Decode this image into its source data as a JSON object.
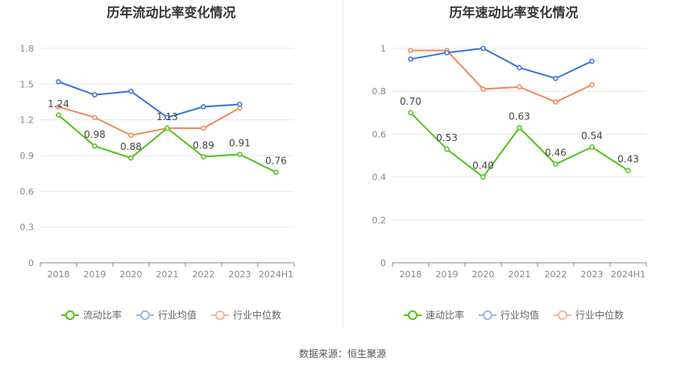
{
  "source_text": "数据来源：恒生聚源",
  "chart_data": [
    {
      "type": "line",
      "title": "历年流动比率变化情况",
      "categories": [
        "2018",
        "2019",
        "2020",
        "2021",
        "2022",
        "2023",
        "2024H1"
      ],
      "ylim": [
        0,
        1.8
      ],
      "yticks": [
        0,
        0.3,
        0.6,
        0.9,
        1.2,
        1.5,
        1.8
      ],
      "ytick_labels": [
        "0",
        "0.3",
        "0.6",
        "0.9",
        "1.2",
        "1.5",
        "1.8"
      ],
      "grid": true,
      "legend_position": "bottom",
      "series": [
        {
          "name": "流动比率",
          "color": "#52c41a",
          "values": [
            1.24,
            0.98,
            0.88,
            1.13,
            0.89,
            0.91,
            0.76
          ],
          "labels": [
            "1.24",
            "0.98",
            "0.88",
            "1.13",
            "0.89",
            "0.91",
            "0.76"
          ]
        },
        {
          "name": "行业均值",
          "color": "#3a75d8",
          "values": [
            1.52,
            1.41,
            1.44,
            1.22,
            1.31,
            1.33,
            null
          ]
        },
        {
          "name": "行业中位数",
          "color": "#f08a5d",
          "values": [
            1.31,
            1.22,
            1.07,
            1.13,
            1.13,
            1.3,
            null
          ]
        }
      ]
    },
    {
      "type": "line",
      "title": "历年速动比率变化情况",
      "categories": [
        "2018",
        "2019",
        "2020",
        "2021",
        "2022",
        "2023",
        "2024H1"
      ],
      "ylim": [
        0,
        1
      ],
      "yticks": [
        0,
        0.2,
        0.4,
        0.6,
        0.8,
        1
      ],
      "ytick_labels": [
        "0",
        "0.2",
        "0.4",
        "0.6",
        "0.8",
        "1"
      ],
      "grid": true,
      "legend_position": "bottom",
      "series": [
        {
          "name": "速动比率",
          "color": "#52c41a",
          "values": [
            0.7,
            0.53,
            0.4,
            0.63,
            0.46,
            0.54,
            0.43
          ],
          "labels": [
            "0.70",
            "0.53",
            "0.40",
            "0.63",
            "0.46",
            "0.54",
            "0.43"
          ]
        },
        {
          "name": "行业均值",
          "color": "#3a75d8",
          "values": [
            0.95,
            0.98,
            1.0,
            0.91,
            0.86,
            0.94,
            null
          ]
        },
        {
          "name": "行业中位数",
          "color": "#f08a5d",
          "values": [
            0.99,
            0.99,
            0.81,
            0.82,
            0.75,
            0.83,
            null
          ]
        }
      ]
    }
  ]
}
